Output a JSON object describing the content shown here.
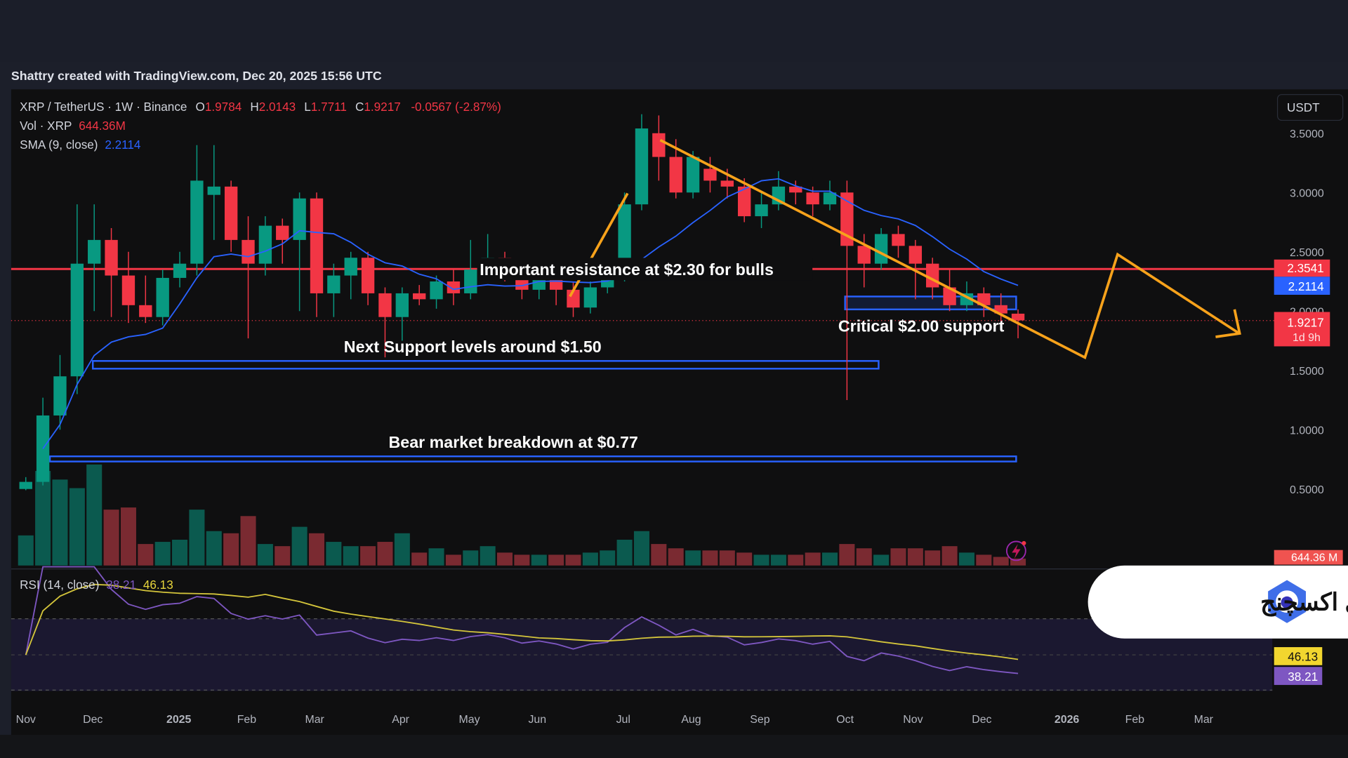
{
  "header": {
    "caption": "Shattry created with TradingView.com, Dec 20, 2025 15:56 UTC"
  },
  "legend": {
    "symbol": "XRP / TetherUS · 1W · Binance",
    "o_label": "O",
    "o": "1.9784",
    "h_label": "H",
    "h": "2.0143",
    "l_label": "L",
    "l": "1.7711",
    "c_label": "C",
    "c": "1.9217",
    "change": "-0.0567 (-2.87%)",
    "vol_label": "Vol · XRP",
    "vol": "644.36M",
    "sma_label": "SMA (9, close)",
    "sma": "2.2114",
    "rsi_label": "RSI (14, close)",
    "rsi": "38.21",
    "rsi_ma": "46.13"
  },
  "currency_button": "USDT",
  "price_labels": {
    "resistance": "2.3541",
    "sma": "2.2114",
    "last": "1.9217",
    "countdown": "1d 9h",
    "volume": "644.36 M",
    "rsi_ma": "46.13",
    "rsi": "38.21"
  },
  "annotations": {
    "resistance": "Important resistance at $2.30 for bulls",
    "critical": "Critical $2.00 support",
    "next_support": "Next Support levels around $1.50",
    "bear": "Bear market breakdown at $0.77"
  },
  "watermark": {
    "text": "اوکی اکسچنج"
  },
  "colors": {
    "up": "#089981",
    "down": "#f23645",
    "sma": "#2962ff",
    "resistance": "#f23645",
    "zones": "#2962ff",
    "projection": "#f7a21b",
    "rsi": "#7e57c2",
    "rsi_ma": "#e6d43b"
  },
  "chart_data": {
    "type": "candlestick",
    "title": "XRP / TetherUS · 1W · Binance",
    "y_ticks": [
      "3.5000",
      "3.0000",
      "2.5000",
      "2.0000",
      "1.5000",
      "1.0000",
      "0.5000"
    ],
    "ylim": [
      0,
      3.6
    ],
    "x_ticks": [
      "Nov",
      "Dec",
      "2025",
      "Feb",
      "Mar",
      "Apr",
      "May",
      "Jun",
      "Jul",
      "Aug",
      "Sep",
      "Oct",
      "Nov",
      "Dec",
      "2026",
      "Feb",
      "Mar"
    ],
    "grid": false,
    "candles": [
      [
        0.5,
        0.6,
        0.49,
        0.56
      ],
      [
        0.56,
        1.27,
        0.53,
        1.12
      ],
      [
        1.12,
        1.63,
        1.0,
        1.45
      ],
      [
        1.45,
        2.9,
        1.3,
        2.4
      ],
      [
        2.4,
        2.9,
        2.0,
        2.6
      ],
      [
        2.6,
        2.7,
        1.95,
        2.3
      ],
      [
        2.3,
        2.5,
        1.9,
        2.05
      ],
      [
        2.05,
        2.3,
        1.9,
        1.95
      ],
      [
        1.95,
        2.35,
        1.88,
        2.28
      ],
      [
        2.28,
        2.5,
        2.2,
        2.4
      ],
      [
        2.4,
        3.4,
        2.3,
        3.1
      ],
      [
        2.98,
        3.4,
        2.6,
        3.05
      ],
      [
        3.05,
        3.1,
        2.5,
        2.6
      ],
      [
        2.6,
        2.8,
        1.77,
        2.4
      ],
      [
        2.4,
        2.8,
        2.3,
        2.72
      ],
      [
        2.72,
        2.78,
        2.4,
        2.6
      ],
      [
        2.6,
        3.0,
        2.0,
        2.95
      ],
      [
        2.95,
        3.0,
        1.95,
        2.15
      ],
      [
        2.15,
        2.4,
        1.95,
        2.3
      ],
      [
        2.3,
        2.5,
        2.1,
        2.45
      ],
      [
        2.45,
        2.5,
        2.05,
        2.15
      ],
      [
        2.15,
        2.2,
        1.61,
        1.95
      ],
      [
        1.95,
        2.2,
        1.75,
        2.15
      ],
      [
        2.15,
        2.22,
        2.05,
        2.1
      ],
      [
        2.1,
        2.3,
        2.02,
        2.25
      ],
      [
        2.25,
        2.35,
        2.05,
        2.15
      ],
      [
        2.15,
        2.6,
        2.1,
        2.35
      ],
      [
        2.35,
        2.65,
        2.28,
        2.45
      ],
      [
        2.45,
        2.5,
        2.25,
        2.35
      ],
      [
        2.35,
        2.4,
        2.1,
        2.18
      ],
      [
        2.18,
        2.35,
        2.1,
        2.27
      ],
      [
        2.27,
        2.35,
        2.05,
        2.18
      ],
      [
        2.18,
        2.25,
        1.95,
        2.03
      ],
      [
        2.03,
        2.25,
        1.98,
        2.2
      ],
      [
        2.2,
        2.35,
        2.15,
        2.27
      ],
      [
        2.27,
        3.0,
        2.25,
        2.9
      ],
      [
        2.9,
        3.66,
        2.85,
        3.54
      ],
      [
        3.5,
        3.65,
        3.1,
        3.3
      ],
      [
        3.3,
        3.45,
        2.95,
        3.0
      ],
      [
        3.0,
        3.35,
        2.95,
        3.3
      ],
      [
        3.2,
        3.3,
        3.0,
        3.1
      ],
      [
        3.1,
        3.2,
        2.95,
        3.05
      ],
      [
        3.05,
        3.12,
        2.75,
        2.8
      ],
      [
        2.8,
        3.0,
        2.7,
        2.9
      ],
      [
        2.9,
        3.18,
        2.85,
        3.05
      ],
      [
        3.05,
        3.1,
        2.9,
        3.0
      ],
      [
        3.0,
        3.05,
        2.8,
        2.9
      ],
      [
        2.9,
        3.1,
        2.85,
        3.0
      ],
      [
        3.0,
        3.1,
        1.25,
        2.55
      ],
      [
        2.55,
        2.65,
        2.2,
        2.4
      ],
      [
        2.4,
        2.7,
        2.35,
        2.65
      ],
      [
        2.65,
        2.72,
        2.45,
        2.55
      ],
      [
        2.55,
        2.6,
        2.1,
        2.4
      ],
      [
        2.4,
        2.45,
        2.1,
        2.2
      ],
      [
        2.2,
        2.35,
        2.0,
        2.05
      ],
      [
        2.05,
        2.25,
        2.0,
        2.15
      ],
      [
        2.15,
        2.2,
        1.95,
        2.05
      ],
      [
        2.05,
        2.15,
        1.9,
        1.98
      ],
      [
        1.9784,
        2.0143,
        1.7711,
        1.9217
      ]
    ],
    "volume_m": [
      2800,
      8800,
      8000,
      7200,
      9400,
      5200,
      5400,
      2000,
      2200,
      2400,
      5200,
      3200,
      3000,
      4600,
      2000,
      1800,
      3600,
      3000,
      2200,
      1800,
      1800,
      2200,
      3000,
      1200,
      1600,
      1000,
      1400,
      1800,
      1200,
      1000,
      1000,
      1000,
      1000,
      1200,
      1400,
      2400,
      3200,
      2000,
      1600,
      1400,
      1400,
      1400,
      1200,
      1000,
      1000,
      1000,
      1200,
      1200,
      2000,
      1600,
      1000,
      1600,
      1600,
      1400,
      1800,
      1200,
      1000,
      800,
      644.36
    ],
    "sma_period": 9,
    "rsi_period": 14,
    "horizontal_levels": [
      2.3541,
      2.0,
      1.5,
      0.77
    ]
  }
}
